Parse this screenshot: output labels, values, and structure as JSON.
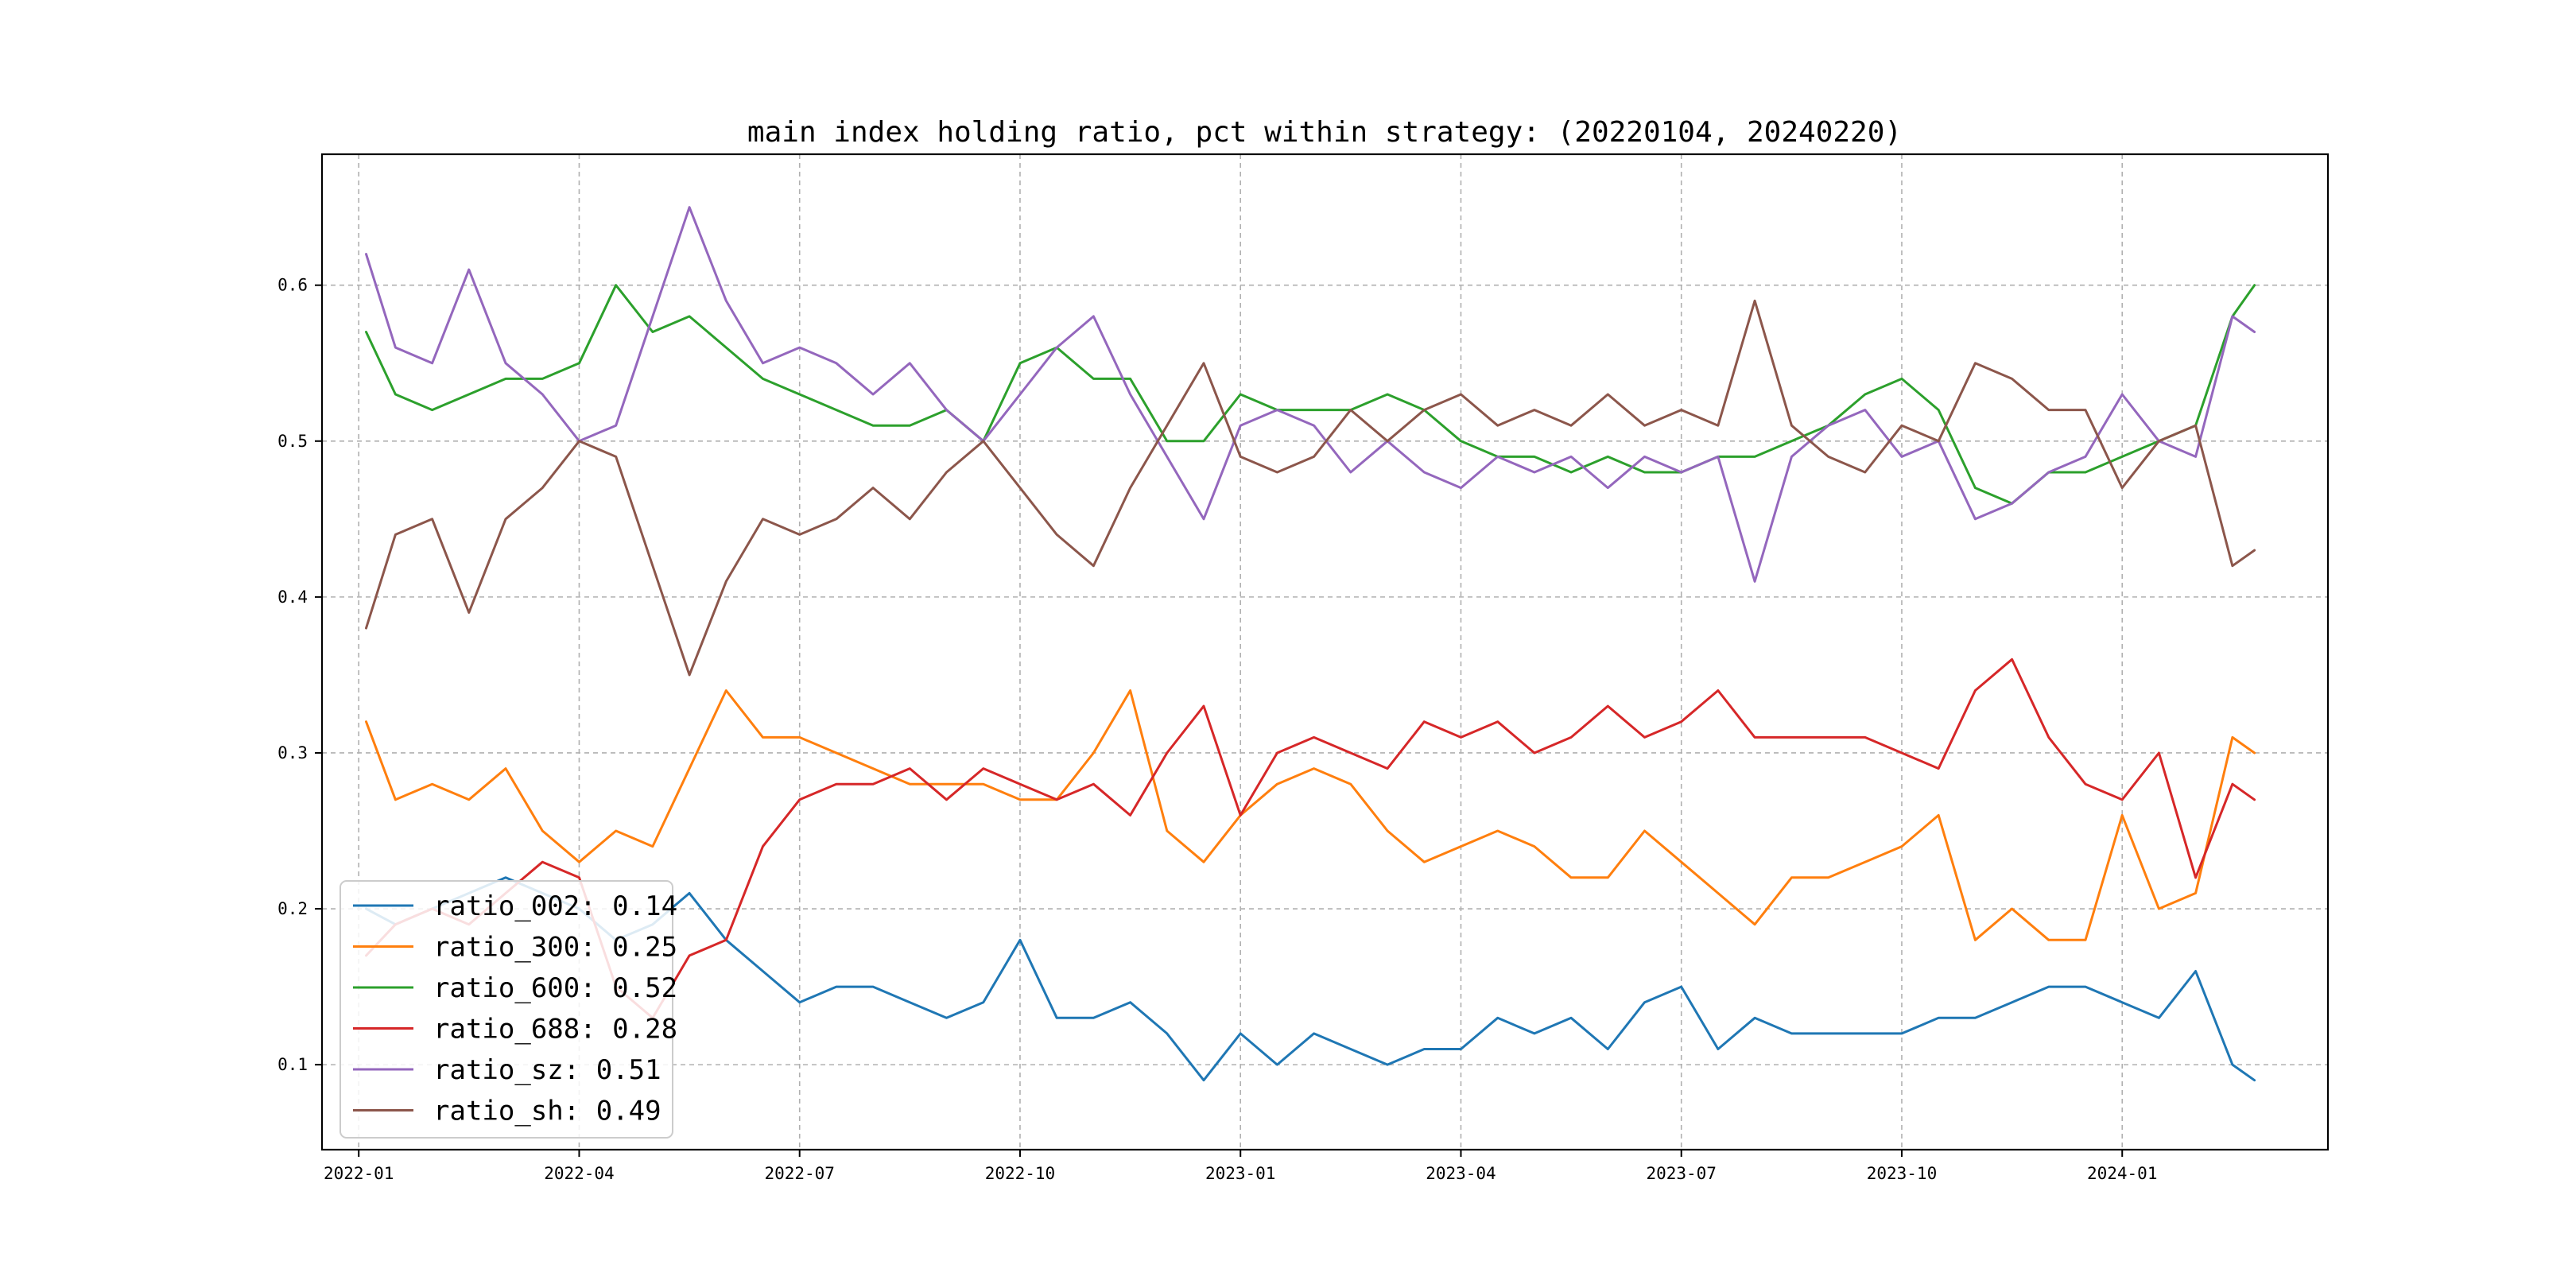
{
  "chart_data": {
    "type": "line",
    "title": "main index holding ratio, pct within strategy: (20220104, 20240220)",
    "xlabel": "",
    "ylabel": "",
    "x_range": [
      "2021-12-20",
      "2024-03-29"
    ],
    "xlim_index": [
      -0.5,
      26.8
    ],
    "ylim": [
      0.0455,
      0.684
    ],
    "x_ticks": [
      {
        "label": "2022-01",
        "pos": 0
      },
      {
        "label": "2022-04",
        "pos": 3
      },
      {
        "label": "2022-07",
        "pos": 6
      },
      {
        "label": "2022-10",
        "pos": 9
      },
      {
        "label": "2023-01",
        "pos": 12
      },
      {
        "label": "2023-04",
        "pos": 15
      },
      {
        "label": "2023-07",
        "pos": 18
      },
      {
        "label": "2023-10",
        "pos": 21
      },
      {
        "label": "2024-01",
        "pos": 24
      }
    ],
    "y_ticks": [
      0.1,
      0.2,
      0.3,
      0.4,
      0.5,
      0.6
    ],
    "grid": true,
    "legend_location": "lower-left",
    "x_positions": [
      0.1,
      0.5,
      1.0,
      1.5,
      2.0,
      2.5,
      3.0,
      3.5,
      4.0,
      4.5,
      5.0,
      5.5,
      6.0,
      6.5,
      7.0,
      7.5,
      8.0,
      8.5,
      9.0,
      9.5,
      10.0,
      10.5,
      11.0,
      11.5,
      12.0,
      12.5,
      13.0,
      13.5,
      14.0,
      14.5,
      15.0,
      15.5,
      16.0,
      16.5,
      17.0,
      17.5,
      18.0,
      18.5,
      19.0,
      19.5,
      20.0,
      20.5,
      21.0,
      21.5,
      22.0,
      22.5,
      23.0,
      23.5,
      24.0,
      24.5,
      25.0,
      25.5,
      25.8
    ],
    "series": [
      {
        "name": "ratio_002",
        "legend_label": "ratio_002: 0.14",
        "color": "#1f77b4",
        "values": [
          0.2,
          0.19,
          0.2,
          0.21,
          0.22,
          0.21,
          0.2,
          0.18,
          0.19,
          0.21,
          0.18,
          0.16,
          0.14,
          0.15,
          0.15,
          0.14,
          0.13,
          0.14,
          0.18,
          0.13,
          0.13,
          0.14,
          0.12,
          0.09,
          0.12,
          0.1,
          0.12,
          0.11,
          0.1,
          0.11,
          0.11,
          0.13,
          0.12,
          0.13,
          0.11,
          0.14,
          0.15,
          0.11,
          0.13,
          0.12,
          0.12,
          0.12,
          0.12,
          0.13,
          0.13,
          0.14,
          0.15,
          0.15,
          0.14,
          0.13,
          0.16,
          0.1,
          0.09
        ]
      },
      {
        "name": "ratio_300",
        "legend_label": "ratio_300: 0.25",
        "color": "#ff7f0e",
        "values": [
          0.32,
          0.27,
          0.28,
          0.27,
          0.29,
          0.25,
          0.23,
          0.25,
          0.24,
          0.29,
          0.34,
          0.31,
          0.31,
          0.3,
          0.29,
          0.28,
          0.28,
          0.28,
          0.27,
          0.27,
          0.3,
          0.34,
          0.25,
          0.23,
          0.26,
          0.28,
          0.29,
          0.28,
          0.25,
          0.23,
          0.24,
          0.25,
          0.24,
          0.22,
          0.22,
          0.25,
          0.23,
          0.21,
          0.19,
          0.22,
          0.22,
          0.23,
          0.24,
          0.26,
          0.18,
          0.2,
          0.18,
          0.18,
          0.26,
          0.2,
          0.21,
          0.31,
          0.3
        ]
      },
      {
        "name": "ratio_600",
        "legend_label": "ratio_600: 0.52",
        "color": "#2ca02c",
        "values": [
          0.57,
          0.53,
          0.52,
          0.53,
          0.54,
          0.54,
          0.55,
          0.6,
          0.57,
          0.58,
          0.56,
          0.54,
          0.53,
          0.52,
          0.51,
          0.51,
          0.52,
          0.5,
          0.55,
          0.56,
          0.54,
          0.54,
          0.5,
          0.5,
          0.53,
          0.52,
          0.52,
          0.52,
          0.53,
          0.52,
          0.5,
          0.49,
          0.49,
          0.48,
          0.49,
          0.48,
          0.48,
          0.49,
          0.49,
          0.5,
          0.51,
          0.53,
          0.54,
          0.52,
          0.47,
          0.46,
          0.48,
          0.48,
          0.49,
          0.5,
          0.51,
          0.58,
          0.6
        ]
      },
      {
        "name": "ratio_688",
        "legend_label": "ratio_688: 0.28",
        "color": "#d62728",
        "values": [
          0.17,
          0.19,
          0.2,
          0.19,
          0.21,
          0.23,
          0.22,
          0.15,
          0.13,
          0.17,
          0.18,
          0.24,
          0.27,
          0.28,
          0.28,
          0.29,
          0.27,
          0.29,
          0.28,
          0.27,
          0.28,
          0.26,
          0.3,
          0.33,
          0.26,
          0.3,
          0.31,
          0.3,
          0.29,
          0.32,
          0.31,
          0.32,
          0.3,
          0.31,
          0.33,
          0.31,
          0.32,
          0.34,
          0.31,
          0.31,
          0.31,
          0.31,
          0.3,
          0.29,
          0.34,
          0.36,
          0.31,
          0.28,
          0.27,
          0.3,
          0.22,
          0.28,
          0.27
        ]
      },
      {
        "name": "ratio_sz",
        "legend_label": "ratio_sz: 0.51",
        "color": "#9467bd",
        "values": [
          0.62,
          0.56,
          0.55,
          0.61,
          0.55,
          0.53,
          0.5,
          0.51,
          0.58,
          0.65,
          0.59,
          0.55,
          0.56,
          0.55,
          0.53,
          0.55,
          0.52,
          0.5,
          0.53,
          0.56,
          0.58,
          0.53,
          0.49,
          0.45,
          0.51,
          0.52,
          0.51,
          0.48,
          0.5,
          0.48,
          0.47,
          0.49,
          0.48,
          0.49,
          0.47,
          0.49,
          0.48,
          0.49,
          0.41,
          0.49,
          0.51,
          0.52,
          0.49,
          0.5,
          0.45,
          0.46,
          0.48,
          0.49,
          0.53,
          0.5,
          0.49,
          0.58,
          0.57
        ]
      },
      {
        "name": "ratio_sh",
        "legend_label": "ratio_sh: 0.49",
        "color": "#8c564b",
        "values": [
          0.38,
          0.44,
          0.45,
          0.39,
          0.45,
          0.47,
          0.5,
          0.49,
          0.42,
          0.35,
          0.41,
          0.45,
          0.44,
          0.45,
          0.47,
          0.45,
          0.48,
          0.5,
          0.47,
          0.44,
          0.42,
          0.47,
          0.51,
          0.55,
          0.49,
          0.48,
          0.49,
          0.52,
          0.5,
          0.52,
          0.53,
          0.51,
          0.52,
          0.51,
          0.53,
          0.51,
          0.52,
          0.51,
          0.59,
          0.51,
          0.49,
          0.48,
          0.51,
          0.5,
          0.55,
          0.54,
          0.52,
          0.52,
          0.47,
          0.5,
          0.51,
          0.42,
          0.43
        ]
      }
    ]
  }
}
